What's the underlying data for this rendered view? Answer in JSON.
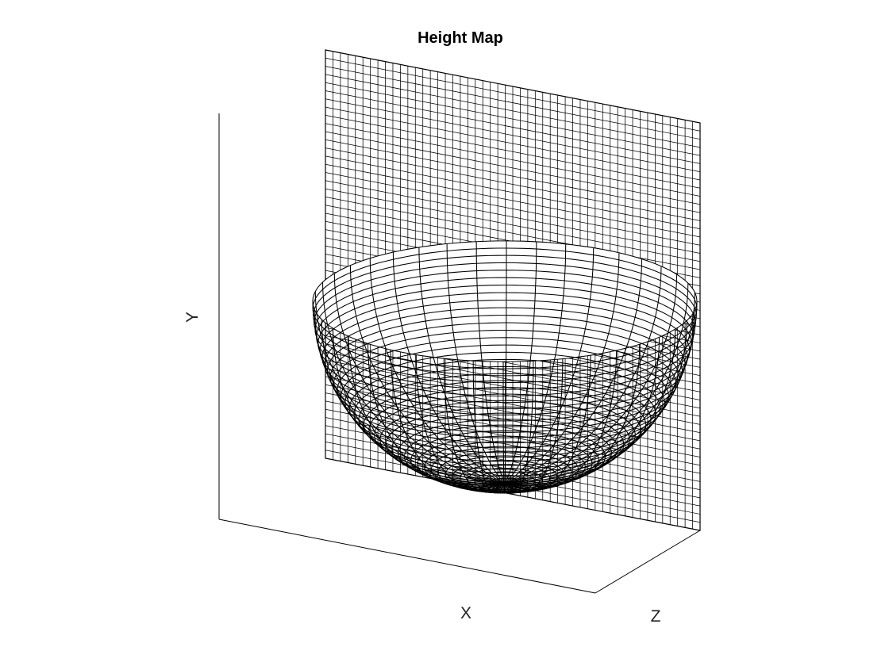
{
  "chart_data": {
    "type": "surface",
    "title": "Height Map",
    "xlabel": "X",
    "ylabel": "Y",
    "zlabel": "Z",
    "grid": false,
    "surface": {
      "shape": "hemisphere",
      "radius": 1,
      "mesh_rows": 40,
      "mesh_cols": 40
    },
    "backdrop": {
      "type": "height-grid",
      "rows": 50,
      "cols": 50
    },
    "colors": {
      "mesh": "#000000",
      "background": "#ffffff"
    }
  }
}
